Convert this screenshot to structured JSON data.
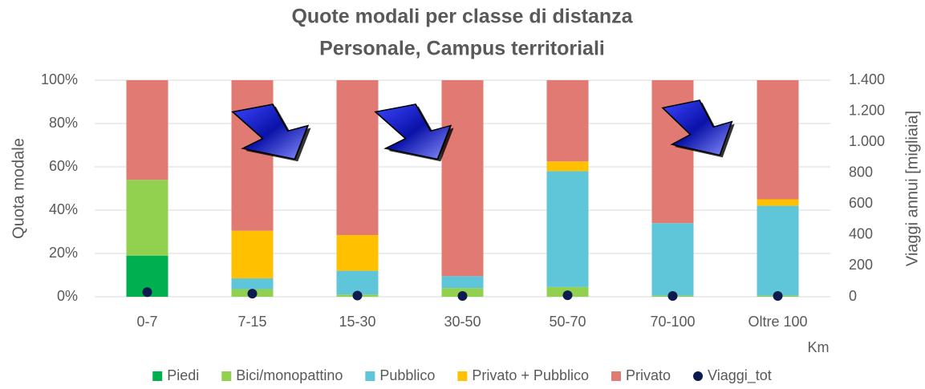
{
  "chart_data": {
    "type": "bar",
    "stacked": true,
    "title": "Quote modali per classe di distanza",
    "subtitle": "Personale, Campus territoriali",
    "x_label": "Km",
    "y_label": "Quota modale",
    "y2_label": "Viaggi annui [migliaia]",
    "categories": [
      "0-7",
      "7-15",
      "15-30",
      "30-50",
      "50-70",
      "70-100",
      "Oltre 100"
    ],
    "series": [
      {
        "name": "Piedi",
        "color": "#00b050",
        "values": [
          19,
          0,
          0,
          0,
          0,
          0,
          0
        ]
      },
      {
        "name": "Bici/monopattino",
        "color": "#92d050",
        "values": [
          35,
          3.5,
          1,
          4,
          4.5,
          0.5,
          0.5
        ]
      },
      {
        "name": "Pubblico",
        "color": "#5fc6d9",
        "values": [
          0,
          5,
          11,
          5.5,
          53.5,
          33.5,
          41.5
        ]
      },
      {
        "name": "Privato + Pubblico",
        "color": "#ffc000",
        "values": [
          0,
          22,
          16.5,
          0,
          4.5,
          0,
          3
        ]
      },
      {
        "name": "Privato",
        "color": "#e07a72",
        "values": [
          46,
          69.5,
          71.5,
          90.5,
          37.5,
          66,
          55
        ]
      },
      {
        "name": "Viaggi_tot",
        "color": "#0c1a4f",
        "axis": "y2",
        "values": [
          30,
          20,
          8,
          5,
          10,
          5,
          5
        ]
      }
    ],
    "ylim": [
      0,
      100
    ],
    "yticks": [
      {
        "value": 0,
        "label": "0%"
      },
      {
        "value": 20,
        "label": "20%"
      },
      {
        "value": 40,
        "label": "40%"
      },
      {
        "value": 60,
        "label": "60%"
      },
      {
        "value": 80,
        "label": "80%"
      },
      {
        "value": 100,
        "label": "100%"
      }
    ],
    "y2lim": [
      0,
      1400
    ],
    "y2ticks": [
      0,
      200,
      400,
      600,
      800,
      {
        "value": 1000,
        "label": "1.000"
      },
      {
        "value": 1200,
        "label": "1.200"
      },
      {
        "value": 1400,
        "label": "1.400"
      }
    ],
    "grid": true,
    "legend": "bottom"
  }
}
